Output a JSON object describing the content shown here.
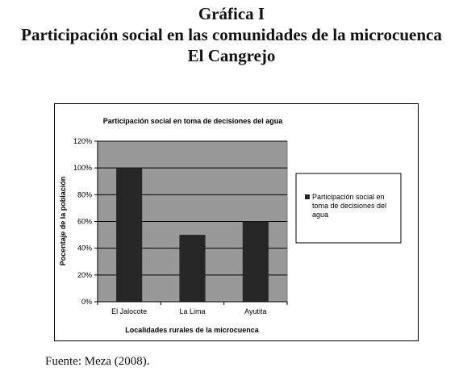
{
  "document": {
    "heading_line1": "Gráfica I",
    "heading_line2": "Participación social en las comunidades de la microcuenca",
    "heading_line3": "El Cangrejo",
    "source": "Fuente: Meza (2008)."
  },
  "colors": {
    "plot_background": "#999999",
    "bar": "#262626",
    "gridline": "#000000"
  },
  "chart_data": {
    "type": "bar",
    "title": "Participación social en toma de decisiones del agua",
    "xlabel": "Localidades rurales de la microcuenca",
    "ylabel": "Pocentaje de la población",
    "categories": [
      "El Jalocote",
      "La Lima",
      "Ayutita"
    ],
    "series": [
      {
        "name": "Participación social en toma de decisiones del agua",
        "values": [
          100,
          50,
          60
        ]
      }
    ],
    "ylim": [
      0,
      120
    ],
    "yticks": [
      0,
      20,
      40,
      60,
      80,
      100,
      120
    ],
    "ytick_labels": [
      "0%",
      "20%",
      "40%",
      "60%",
      "80%",
      "100%",
      "120%"
    ],
    "grid": true,
    "legend_position": "right"
  }
}
